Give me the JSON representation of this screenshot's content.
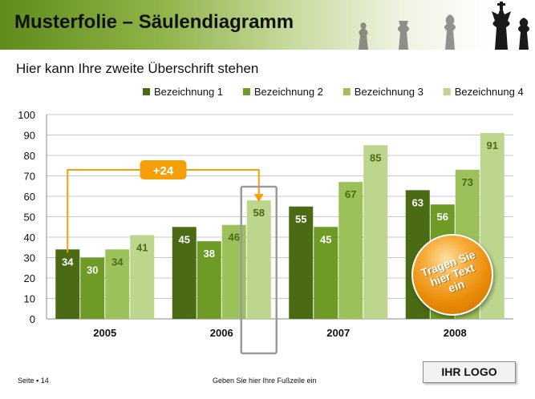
{
  "header": {
    "title": "Musterfolie – Säulendiagramm"
  },
  "subtitle": "Hier kann Ihre zweite Überschrift stehen",
  "chart_data": {
    "type": "bar",
    "categories": [
      "2005",
      "2006",
      "2007",
      "2008"
    ],
    "series": [
      {
        "name": "Bezeichnung 1",
        "values": [
          34,
          45,
          55,
          63
        ]
      },
      {
        "name": "Bezeichnung 2",
        "values": [
          30,
          38,
          45,
          56
        ]
      },
      {
        "name": "Bezeichnung 3",
        "values": [
          34,
          46,
          67,
          73
        ]
      },
      {
        "name": "Bezeichnung 4",
        "values": [
          41,
          58,
          85,
          91
        ]
      }
    ],
    "ylim": [
      0,
      100
    ],
    "yticks": [
      0,
      10,
      20,
      30,
      40,
      50,
      60,
      70,
      80,
      90,
      100
    ],
    "grid": true,
    "legend": "top-right",
    "annotation": {
      "label": "+24",
      "from": "2005 Bezeichnung 1",
      "to": "2006 Bezeichnung 4"
    }
  },
  "colors": {
    "series": [
      "#4a6b14",
      "#6e9a26",
      "#9cc05a",
      "#bcd68e"
    ],
    "accent": "#f5a00a"
  },
  "badge": {
    "line1": "Tragen Sie",
    "line2": "hier Text",
    "line3": "ein"
  },
  "footer": {
    "page": "Seite ▪ 14",
    "text": "Geben Sie hier Ihre Fußzeile ein"
  },
  "logo": "IHR LOGO"
}
